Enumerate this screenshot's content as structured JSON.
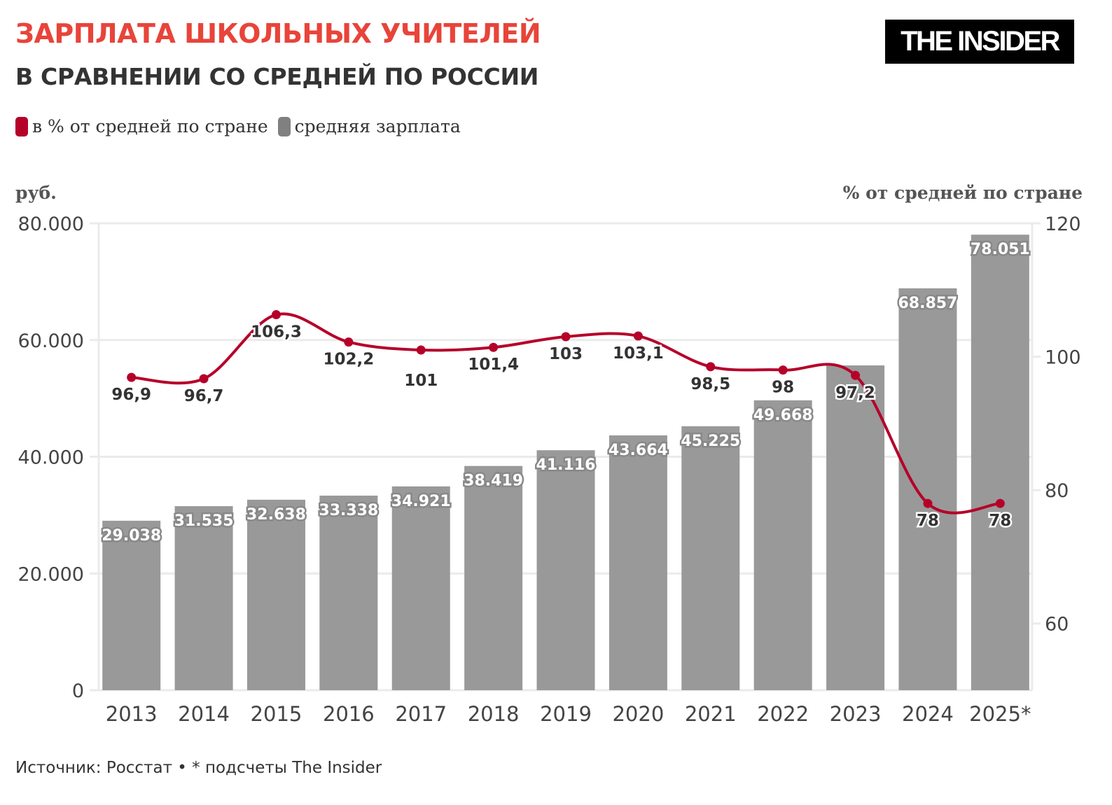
{
  "header": {
    "title": "ЗАРПЛАТА ШКОЛЬНЫХ УЧИТЕЛЕЙ",
    "subtitle": "В СРАВНЕНИИ СО СРЕДНЕЙ ПО РОССИИ",
    "logo": "THE INSIDER"
  },
  "footer": {
    "source": "Источник: Росстат • * подсчеты The Insider"
  },
  "chart_data": {
    "type": "bar+line",
    "categories": [
      "2013",
      "2014",
      "2015",
      "2016",
      "2017",
      "2018",
      "2019",
      "2020",
      "2021",
      "2022",
      "2023",
      "2024",
      "2025*"
    ],
    "left_axis": {
      "label": "руб.",
      "range": [
        0,
        80000
      ],
      "ticks": [
        0,
        20000,
        40000,
        60000,
        80000
      ],
      "tick_labels": [
        "0",
        "20.000",
        "40.000",
        "60.000",
        "80.000"
      ]
    },
    "right_axis": {
      "label": "% от средней по стране",
      "range": [
        50,
        120
      ],
      "ticks": [
        60,
        80,
        100,
        120
      ],
      "tick_labels": [
        "60",
        "80",
        "100",
        "120"
      ]
    },
    "grid": true,
    "legend_position": "top-left",
    "series": [
      {
        "name": "в % от средней по стране",
        "type": "line",
        "axis": "right",
        "color": "#b5002a",
        "values": [
          96.9,
          96.7,
          106.3,
          102.2,
          101,
          101.4,
          103,
          103.1,
          98.5,
          98,
          97.2,
          78,
          78
        ],
        "labels": [
          "96,9",
          "96,7",
          "106,3",
          "102,2",
          "101",
          "101,4",
          "103",
          "103,1",
          "98,5",
          "98",
          "97,2",
          "78",
          "78"
        ]
      },
      {
        "name": "средняя зарплата",
        "type": "bar",
        "axis": "left",
        "color": "#808080",
        "values": [
          29038,
          31535,
          32638,
          33338,
          34921,
          38419,
          41116,
          43664,
          45225,
          49668,
          55650,
          68857,
          78051
        ],
        "labels": [
          "29.038",
          "31.535",
          "32.638",
          "33.338",
          "34.921",
          "38.419",
          "41.116",
          "43.664",
          "45.225",
          "49.668",
          "",
          "68.857",
          "78.051"
        ]
      }
    ]
  }
}
